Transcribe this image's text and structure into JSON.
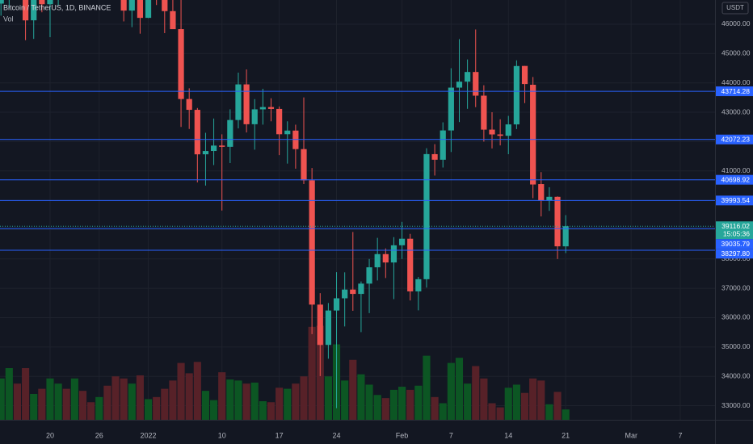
{
  "chart_data": {
    "type": "candlestick",
    "title": "Bitcoin / TetherUS, 1D, BINANCE",
    "volume_label": "Vol",
    "currency": "USDT",
    "countdown": "15:05:36",
    "categories": [
      null,
      null,
      null,
      null,
      null,
      null,
      "20",
      null,
      null,
      null,
      null,
      null,
      "26",
      null,
      null,
      null,
      null,
      null,
      "2022",
      null,
      null,
      null,
      null,
      null,
      null,
      null,
      null,
      "10",
      null,
      null,
      null,
      null,
      null,
      null,
      "17",
      null,
      null,
      null,
      null,
      null,
      null,
      "24",
      null,
      null,
      null,
      null,
      null,
      null,
      null,
      "Feb",
      null,
      null,
      null,
      null,
      null,
      "7",
      null,
      null,
      null,
      null,
      null,
      null,
      "14",
      null,
      null,
      null,
      null,
      null,
      null,
      "21",
      null,
      null,
      null,
      null,
      null,
      null,
      null,
      "Mar",
      null,
      null,
      null,
      null,
      null,
      "7",
      null,
      null,
      null
    ],
    "open": [
      46702,
      48336,
      48864,
      47632,
      46133,
      46834,
      46681,
      46914,
      48887,
      48588,
      50838,
      50819,
      50400,
      50776,
      50701,
      47545,
      46464,
      47120,
      46217,
      47723,
      47286,
      46446,
      45833,
      43451,
      43082,
      41567,
      41680,
      41865,
      41822,
      42736,
      43949,
      42592,
      43099,
      43177,
      43113,
      42251,
      42375,
      41744,
      40680,
      36445,
      35071,
      36244,
      36660,
      36958,
      36809,
      37160,
      37716,
      38166,
      37881,
      38467,
      38690,
      36896,
      37311,
      41572,
      41382,
      42380,
      43839,
      44043,
      44372,
      43565,
      42408,
      42244,
      42198,
      42586,
      44578,
      43937,
      40552,
      40001,
      40118,
      38431,
      null,
      null,
      null,
      null,
      null,
      null,
      null,
      null,
      null,
      null,
      null,
      null,
      null,
      null,
      null,
      null,
      null
    ],
    "high": [
      48700,
      49500,
      49436,
      47995,
      47392,
      48300,
      47537,
      49328,
      49576,
      51375,
      51810,
      51156,
      51280,
      52088,
      50704,
      48139,
      47900,
      48548,
      47954,
      47990,
      47570,
      47510,
      47070,
      43816,
      43145,
      42300,
      42786,
      42248,
      43100,
      44350,
      44460,
      43448,
      43800,
      43476,
      43196,
      42691,
      42576,
      43505,
      41100,
      36835,
      36499,
      37550,
      37545,
      38919,
      37234,
      38000,
      38720,
      38359,
      38744,
      39265,
      38855,
      37387,
      41772,
      41913,
      42656,
      44500,
      45492,
      44799,
      45821,
      43920,
      43000,
      42760,
      42876,
      44768,
      44578,
      44200,
      40959,
      40444,
      40132,
      39494,
      null,
      null,
      null,
      null,
      null,
      null,
      null,
      null,
      null,
      null,
      null,
      null,
      null,
      null,
      null,
      null,
      null
    ],
    "low": [
      46290,
      46547,
      47511,
      45456,
      45500,
      46406,
      45558,
      46630,
      48421,
      47920,
      50384,
      50142,
      49412,
      50449,
      47313,
      46096,
      45900,
      45678,
      46208,
      46654,
      45696,
      45835,
      42500,
      42430,
      40610,
      40501,
      41200,
      39650,
      41268,
      42450,
      42311,
      41725,
      42578,
      42691,
      41540,
      41250,
      41077,
      40553,
      35440,
      34008,
      34601,
      32917,
      35701,
      36234,
      35507,
      36155,
      37268,
      37351,
      36632,
      38000,
      36586,
      36250,
      37026,
      40843,
      41116,
      41645,
      42666,
      43117,
      43174,
      42000,
      41766,
      41870,
      41570,
      42427,
      43311,
      40073,
      39450,
      39639,
      38000,
      38200,
      null,
      null,
      null,
      null,
      null,
      null,
      null,
      null,
      null,
      null,
      null,
      null,
      null,
      null,
      null,
      null,
      null
    ],
    "close": [
      48343,
      48864,
      47632,
      46131,
      46834,
      46681,
      46914,
      48889,
      48588,
      50838,
      50820,
      50400,
      50775,
      50701,
      47543,
      46464,
      47120,
      46216,
      47722,
      47286,
      46446,
      45832,
      43451,
      43082,
      41566,
      41679,
      41864,
      41822,
      42735,
      43949,
      42592,
      43099,
      43177,
      43113,
      42250,
      42375,
      41744,
      40680,
      36445,
      35071,
      36244,
      36660,
      36958,
      36809,
      37160,
      37716,
      38166,
      37881,
      38466,
      38690,
      36896,
      37311,
      41574,
      41382,
      42380,
      43839,
      44042,
      44372,
      43565,
      42407,
      42244,
      42197,
      42586,
      44575,
      43961,
      40538,
      40000,
      40118,
      38431,
      39116.02,
      null,
      null,
      null,
      null,
      null,
      null,
      null,
      null,
      null,
      null,
      null,
      null,
      null,
      null,
      null,
      null,
      null
    ],
    "volume": [
      40,
      50,
      35,
      50,
      25,
      30,
      40,
      35,
      30,
      40,
      28,
      17,
      22,
      33,
      42,
      40,
      35,
      43,
      20,
      22,
      30,
      38,
      55,
      45,
      56,
      28,
      19,
      46,
      39,
      38,
      35,
      36,
      18,
      17,
      31,
      30,
      35,
      42,
      90,
      91,
      42,
      73,
      38,
      58,
      44,
      34,
      24,
      21,
      29,
      32,
      29,
      33,
      62,
      22,
      16,
      55,
      60,
      35,
      52,
      40,
      16,
      12,
      31,
      34,
      26,
      40,
      38,
      15,
      27,
      10,
      null,
      null,
      null,
      null,
      null,
      null,
      null,
      null,
      null,
      null,
      null,
      null,
      null,
      null,
      null,
      null,
      null
    ],
    "ylim": [
      32520,
      46825
    ],
    "yticks": [
      {
        "value": 33000,
        "label": "33000.00"
      },
      {
        "value": 34000,
        "label": "34000.00"
      },
      {
        "value": 35000,
        "label": "35000.00"
      },
      {
        "value": 36000,
        "label": "36000.00"
      },
      {
        "value": 37000,
        "label": "37000.00"
      },
      {
        "value": 38000,
        "label": "38000.00"
      },
      {
        "value": 39000,
        "label": "39000.00"
      },
      {
        "value": 40000,
        "label": "40000.00"
      },
      {
        "value": 41000,
        "label": "41000.00"
      },
      {
        "value": 42000,
        "label": "42000.00"
      },
      {
        "value": 43000,
        "label": "43000.00"
      },
      {
        "value": 44000,
        "label": "44000.00"
      },
      {
        "value": 45000,
        "label": "45000.00"
      },
      {
        "value": 46000,
        "label": "46000.00"
      }
    ],
    "price_lines": [
      43714.28,
      42072.23,
      40698.92,
      39993.54,
      39035.79,
      {
        "value": 38297.8,
        "label": "38297.80"
      }
    ],
    "up_color": "#26a69a",
    "down_color": "#ef5350",
    "line_color": "#2962ff",
    "grid": true
  }
}
